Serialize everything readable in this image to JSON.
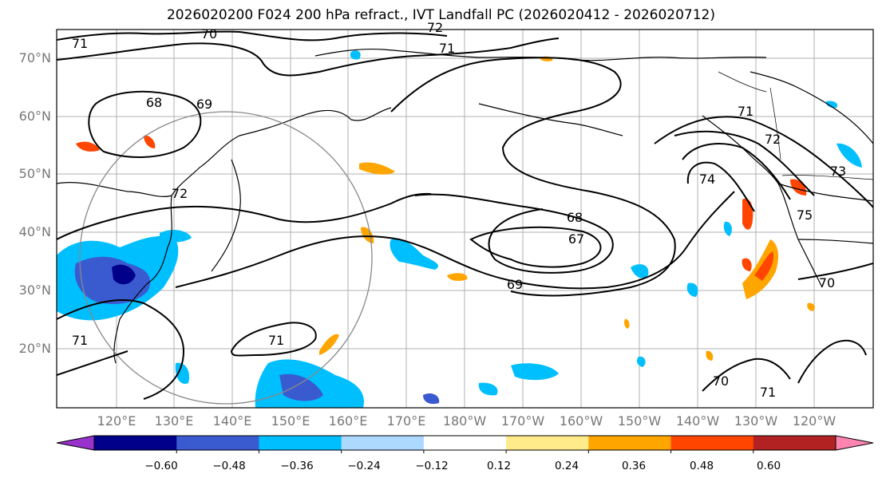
{
  "title": "2026020200 F024 200 hPa refract., IVT Landfall PC (2026020412 - 2026020712)",
  "lat_labels": [
    "70°N",
    "60°N",
    "50°N",
    "40°N",
    "30°N",
    "20°N"
  ],
  "lon_labels": [
    "120°E",
    "130°E",
    "140°E",
    "150°E",
    "160°E",
    "170°E",
    "180°W",
    "170°W",
    "160°W",
    "150°W",
    "140°W",
    "130°W",
    "120°W"
  ],
  "contour_labels": [
    "70",
    "72",
    "71",
    "68",
    "69",
    "71",
    "71",
    "72",
    "73",
    "74",
    "75",
    "68",
    "67",
    "69",
    "70",
    "71",
    "70",
    "71",
    "72",
    "71"
  ],
  "colorbar": {
    "ticks": [
      "−0.60",
      "−0.48",
      "−0.36",
      "−0.24",
      "−0.12",
      "0.12",
      "0.24",
      "0.36",
      "0.48",
      "0.60"
    ],
    "colors": [
      "#9932cc",
      "#00008b",
      "#3a5bd0",
      "#00bfff",
      "#add8ff",
      "#ffffff",
      "#ffeb8a",
      "#ffa500",
      "#ff4500",
      "#b22222",
      "#ff85b0"
    ]
  }
}
